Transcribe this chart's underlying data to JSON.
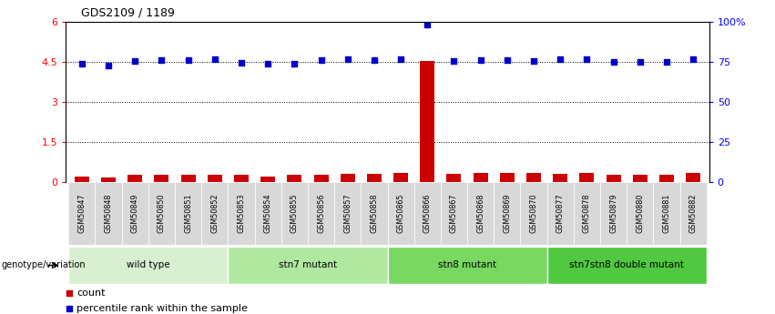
{
  "title": "GDS2109 / 1189",
  "samples": [
    "GSM50847",
    "GSM50848",
    "GSM50849",
    "GSM50850",
    "GSM50851",
    "GSM50852",
    "GSM50853",
    "GSM50854",
    "GSM50855",
    "GSM50856",
    "GSM50857",
    "GSM50858",
    "GSM50865",
    "GSM50866",
    "GSM50867",
    "GSM50868",
    "GSM50869",
    "GSM50870",
    "GSM50877",
    "GSM50878",
    "GSM50879",
    "GSM50880",
    "GSM50881",
    "GSM50882"
  ],
  "counts": [
    0.22,
    0.19,
    0.26,
    0.26,
    0.26,
    0.26,
    0.26,
    0.22,
    0.26,
    0.27,
    0.3,
    0.32,
    0.34,
    4.55,
    0.31,
    0.35,
    0.35,
    0.35,
    0.32,
    0.36,
    0.28,
    0.28,
    0.27,
    0.35
  ],
  "percentiles": [
    4.45,
    4.38,
    4.55,
    4.58,
    4.58,
    4.59,
    4.48,
    4.45,
    4.43,
    4.58,
    4.59,
    4.57,
    4.59,
    5.9,
    4.55,
    4.56,
    4.56,
    4.55,
    4.59,
    4.62,
    4.49,
    4.51,
    4.49,
    4.6
  ],
  "groups": [
    {
      "label": "wild type",
      "start": 0,
      "end": 6,
      "color": "#d8f0d0"
    },
    {
      "label": "stn7 mutant",
      "start": 6,
      "end": 12,
      "color": "#b0e8a0"
    },
    {
      "label": "stn8 mutant",
      "start": 12,
      "end": 18,
      "color": "#78d860"
    },
    {
      "label": "stn7stn8 double mutant",
      "start": 18,
      "end": 24,
      "color": "#50c840"
    }
  ],
  "bar_color": "#cc0000",
  "dot_color": "#0000cc",
  "left_ylim": [
    0,
    6
  ],
  "left_yticks": [
    0,
    1.5,
    3,
    4.5,
    6
  ],
  "left_yticklabels": [
    "0",
    "1.5",
    "3",
    "4.5",
    "6"
  ],
  "right_ylim": [
    0,
    100
  ],
  "right_yticks": [
    0,
    25,
    50,
    75,
    100
  ],
  "right_yticklabels": [
    "0",
    "25",
    "50",
    "75",
    "100%"
  ],
  "hlines": [
    1.5,
    3,
    4.5
  ],
  "genotype_label": "genotype/variation",
  "legend_count_label": "count",
  "legend_pct_label": "percentile rank within the sample"
}
